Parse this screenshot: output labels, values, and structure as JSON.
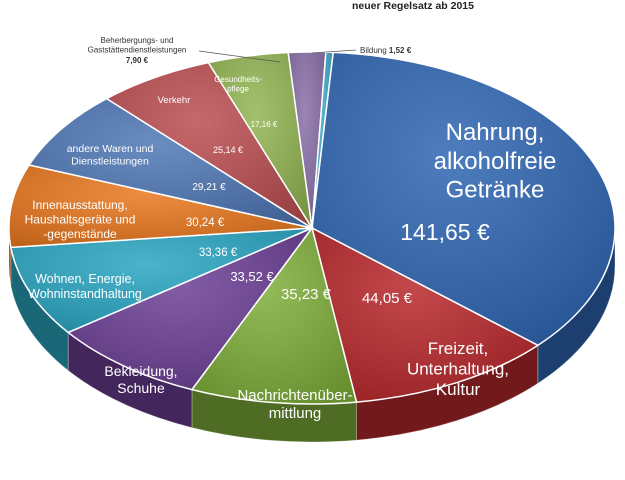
{
  "subtitle": "neuer Regelsatz ab 2015",
  "chart_data": {
    "type": "pie",
    "title": "",
    "subtitle": "neuer Regelsatz ab 2015",
    "unit": "€",
    "slices": [
      {
        "label": "Nahrung, alkoholfreie Getränke",
        "value": 141.65,
        "value_label": "141,65 €",
        "color": "#2f66b3"
      },
      {
        "label": "Freizeit, Unterhaltung, Kultur",
        "value": 44.05,
        "value_label": "44,05 €",
        "color": "#b8282c"
      },
      {
        "label": "Nachrichtenübermittlung",
        "value": 35.23,
        "value_label": "35,23 €",
        "color": "#7fae3a"
      },
      {
        "label": "Bekleidung, Schuhe",
        "value": 33.52,
        "value_label": "33,52 €",
        "color": "#6c3f95"
      },
      {
        "label": "Wohnen, Energie, Wohninstandhaltung",
        "value": 33.36,
        "value_label": "33,36 €",
        "color": "#2aa6c2"
      },
      {
        "label": "Innenausstattung, Haushaltsgeräte und -gegenstände",
        "value": 30.24,
        "value_label": "30,24 €",
        "color": "#e9781f"
      },
      {
        "label": "andere Waren und Dienstleistungen",
        "value": 29.21,
        "value_label": "29,21 €",
        "color": "#4f78b6"
      },
      {
        "label": "Verkehr",
        "value": 25.14,
        "value_label": "25,14 €",
        "color": "#bb4e52"
      },
      {
        "label": "Gesundheitspflege",
        "value": 17.16,
        "value_label": "17,16 €",
        "color": "#92b553"
      },
      {
        "label": "Beherbergungs- und Gaststättendienstleistungen",
        "value": 7.9,
        "value_label": "7,90 €",
        "color": "#8a70a9"
      },
      {
        "label": "Bildung",
        "value": 1.52,
        "value_label": "1,52 €",
        "color": "#3fa7c6"
      }
    ],
    "legend": "none"
  }
}
